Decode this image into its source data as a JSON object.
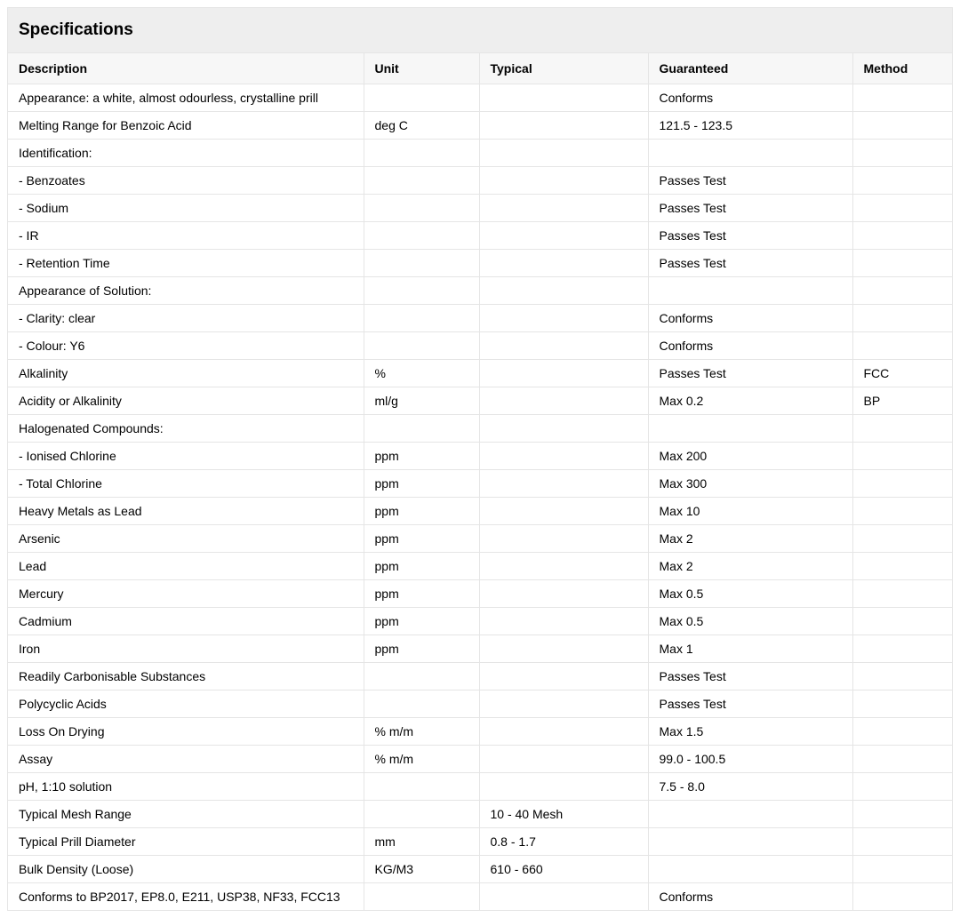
{
  "title": "Specifications",
  "columns": [
    {
      "key": "description",
      "label": "Description"
    },
    {
      "key": "unit",
      "label": "Unit"
    },
    {
      "key": "typical",
      "label": "Typical"
    },
    {
      "key": "guaranteed",
      "label": "Guaranteed"
    },
    {
      "key": "method",
      "label": "Method"
    }
  ],
  "rows": [
    {
      "description": "Appearance: a white, almost odourless, crystalline prill",
      "unit": "",
      "typical": "",
      "guaranteed": "Conforms",
      "method": ""
    },
    {
      "description": "Melting Range for Benzoic Acid",
      "unit": "deg C",
      "typical": "",
      "guaranteed": "121.5 - 123.5",
      "method": ""
    },
    {
      "description": "Identification:",
      "unit": "",
      "typical": "",
      "guaranteed": "",
      "method": ""
    },
    {
      "description": "- Benzoates",
      "unit": "",
      "typical": "",
      "guaranteed": "Passes Test",
      "method": ""
    },
    {
      "description": "- Sodium",
      "unit": "",
      "typical": "",
      "guaranteed": "Passes Test",
      "method": ""
    },
    {
      "description": "- IR",
      "unit": "",
      "typical": "",
      "guaranteed": "Passes Test",
      "method": ""
    },
    {
      "description": "- Retention Time",
      "unit": "",
      "typical": "",
      "guaranteed": "Passes Test",
      "method": ""
    },
    {
      "description": "Appearance of Solution:",
      "unit": "",
      "typical": "",
      "guaranteed": "",
      "method": ""
    },
    {
      "description": "- Clarity: clear",
      "unit": "",
      "typical": "",
      "guaranteed": "Conforms",
      "method": ""
    },
    {
      "description": "- Colour: Y6",
      "unit": "",
      "typical": "",
      "guaranteed": "Conforms",
      "method": ""
    },
    {
      "description": "Alkalinity",
      "unit": "%",
      "typical": "",
      "guaranteed": "Passes Test",
      "method": "FCC"
    },
    {
      "description": "Acidity or Alkalinity",
      "unit": "ml/g",
      "typical": "",
      "guaranteed": "Max 0.2",
      "method": "BP"
    },
    {
      "description": "Halogenated Compounds:",
      "unit": "",
      "typical": "",
      "guaranteed": "",
      "method": ""
    },
    {
      "description": "- Ionised Chlorine",
      "unit": "ppm",
      "typical": "",
      "guaranteed": "Max 200",
      "method": ""
    },
    {
      "description": "- Total Chlorine",
      "unit": "ppm",
      "typical": "",
      "guaranteed": "Max 300",
      "method": ""
    },
    {
      "description": "Heavy Metals as Lead",
      "unit": "ppm",
      "typical": "",
      "guaranteed": "Max 10",
      "method": ""
    },
    {
      "description": "Arsenic",
      "unit": "ppm",
      "typical": "",
      "guaranteed": "Max 2",
      "method": ""
    },
    {
      "description": "Lead",
      "unit": "ppm",
      "typical": "",
      "guaranteed": "Max 2",
      "method": ""
    },
    {
      "description": "Mercury",
      "unit": "ppm",
      "typical": "",
      "guaranteed": "Max 0.5",
      "method": ""
    },
    {
      "description": "Cadmium",
      "unit": "ppm",
      "typical": "",
      "guaranteed": "Max 0.5",
      "method": ""
    },
    {
      "description": "Iron",
      "unit": "ppm",
      "typical": "",
      "guaranteed": "Max 1",
      "method": ""
    },
    {
      "description": "Readily Carbonisable Substances",
      "unit": "",
      "typical": "",
      "guaranteed": "Passes Test",
      "method": ""
    },
    {
      "description": "Polycyclic Acids",
      "unit": "",
      "typical": "",
      "guaranteed": "Passes Test",
      "method": ""
    },
    {
      "description": "Loss On Drying",
      "unit": "% m/m",
      "typical": "",
      "guaranteed": "Max 1.5",
      "method": ""
    },
    {
      "description": "Assay",
      "unit": "% m/m",
      "typical": "",
      "guaranteed": "99.0 - 100.5",
      "method": ""
    },
    {
      "description": "pH, 1:10 solution",
      "unit": "",
      "typical": "",
      "guaranteed": "7.5 - 8.0",
      "method": ""
    },
    {
      "description": "Typical Mesh Range",
      "unit": "",
      "typical": "10 - 40 Mesh",
      "guaranteed": "",
      "method": ""
    },
    {
      "description": "Typical Prill Diameter",
      "unit": "mm",
      "typical": "0.8 - 1.7",
      "guaranteed": "",
      "method": ""
    },
    {
      "description": "Bulk Density (Loose)",
      "unit": "KG/M3",
      "typical": "610 - 660",
      "guaranteed": "",
      "method": ""
    },
    {
      "description": "Conforms to BP2017, EP8.0, E211, USP38, NF33, FCC13",
      "unit": "",
      "typical": "",
      "guaranteed": "Conforms",
      "method": ""
    }
  ]
}
